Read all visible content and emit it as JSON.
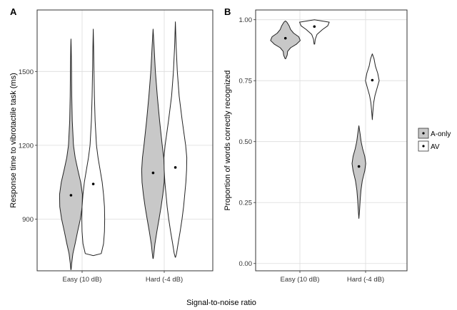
{
  "chart_data": [
    {
      "panel_label": "A",
      "type": "violin",
      "title": "",
      "xlabel": "",
      "ylabel": "Response time to vibrotactile task (ms)",
      "ylim": [
        690,
        1750
      ],
      "yticks": [
        900,
        1200,
        1500
      ],
      "categories": [
        "Easy (10 dB)",
        "Hard (-4 dB)"
      ],
      "grid": true,
      "series": [
        {
          "name": "A-only",
          "fill": "#c8c8c8",
          "groups": [
            {
              "category": "Easy (10 dB)",
              "min": 695,
              "max": 1632,
              "mean": 997,
              "profile": [
                [
                  695,
                  0.01
                ],
                [
                  720,
                  0.06
                ],
                [
                  760,
                  0.17
                ],
                [
                  800,
                  0.36
                ],
                [
                  850,
                  0.58
                ],
                [
                  900,
                  0.82
                ],
                [
                  950,
                  0.98
                ],
                [
                  1000,
                  1.0
                ],
                [
                  1050,
                  0.85
                ],
                [
                  1100,
                  0.6
                ],
                [
                  1150,
                  0.37
                ],
                [
                  1200,
                  0.22
                ],
                [
                  1300,
                  0.11
                ],
                [
                  1400,
                  0.07
                ],
                [
                  1500,
                  0.05
                ],
                [
                  1600,
                  0.02
                ],
                [
                  1632,
                  0.0
                ]
              ]
            },
            {
              "category": "Hard (-4 dB)",
              "min": 740,
              "max": 1672,
              "mean": 1088,
              "profile": [
                [
                  740,
                  0.01
                ],
                [
                  760,
                  0.07
                ],
                [
                  800,
                  0.16
                ],
                [
                  850,
                  0.33
                ],
                [
                  900,
                  0.52
                ],
                [
                  950,
                  0.7
                ],
                [
                  1000,
                  0.85
                ],
                [
                  1050,
                  0.97
                ],
                [
                  1100,
                  1.0
                ],
                [
                  1150,
                  0.93
                ],
                [
                  1200,
                  0.8
                ],
                [
                  1300,
                  0.57
                ],
                [
                  1400,
                  0.37
                ],
                [
                  1500,
                  0.2
                ],
                [
                  1600,
                  0.09
                ],
                [
                  1672,
                  0.0
                ]
              ]
            }
          ]
        },
        {
          "name": "AV",
          "fill": "#ffffff",
          "groups": [
            {
              "category": "Easy (10 dB)",
              "min": 752,
              "max": 1672,
              "mean": 1043,
              "profile": [
                [
                  752,
                  0.02
                ],
                [
                  760,
                  0.7
                ],
                [
                  800,
                  0.9
                ],
                [
                  850,
                  0.98
                ],
                [
                  900,
                  1.0
                ],
                [
                  950,
                  0.98
                ],
                [
                  1000,
                  0.9
                ],
                [
                  1050,
                  0.78
                ],
                [
                  1100,
                  0.6
                ],
                [
                  1150,
                  0.42
                ],
                [
                  1200,
                  0.28
                ],
                [
                  1300,
                  0.16
                ],
                [
                  1400,
                  0.1
                ],
                [
                  1500,
                  0.06
                ],
                [
                  1600,
                  0.03
                ],
                [
                  1672,
                  0.0
                ]
              ]
            },
            {
              "category": "Hard (-4 dB)",
              "min": 745,
              "max": 1702,
              "mean": 1110,
              "profile": [
                [
                  745,
                  0.01
                ],
                [
                  760,
                  0.1
                ],
                [
                  800,
                  0.24
                ],
                [
                  850,
                  0.42
                ],
                [
                  900,
                  0.58
                ],
                [
                  950,
                  0.72
                ],
                [
                  1000,
                  0.82
                ],
                [
                  1050,
                  0.92
                ],
                [
                  1100,
                  0.98
                ],
                [
                  1150,
                  1.0
                ],
                [
                  1200,
                  0.9
                ],
                [
                  1300,
                  0.6
                ],
                [
                  1400,
                  0.33
                ],
                [
                  1500,
                  0.17
                ],
                [
                  1600,
                  0.07
                ],
                [
                  1702,
                  0.0
                ]
              ]
            }
          ]
        }
      ]
    },
    {
      "panel_label": "B",
      "type": "violin",
      "title": "",
      "xlabel": "",
      "ylabel": "Proportion of words correctly recognized",
      "ylim": [
        -0.03,
        1.04
      ],
      "yticks": [
        0.0,
        0.25,
        0.5,
        0.75,
        1.0
      ],
      "yticklabels": [
        "0.00",
        "0.25",
        "0.50",
        "0.75",
        "1.00"
      ],
      "categories": [
        "Easy (10 dB)",
        "Hard (-4 dB)"
      ],
      "grid": true,
      "series": [
        {
          "name": "A-only",
          "fill": "#c8c8c8",
          "groups": [
            {
              "category": "Easy (10 dB)",
              "min": 0.84,
              "max": 0.995,
              "mean": 0.924,
              "profile": [
                [
                  0.84,
                  0.02
                ],
                [
                  0.855,
                  0.12
                ],
                [
                  0.87,
                  0.15
                ],
                [
                  0.885,
                  0.35
                ],
                [
                  0.9,
                  0.75
                ],
                [
                  0.915,
                  1.0
                ],
                [
                  0.93,
                  0.9
                ],
                [
                  0.945,
                  0.55
                ],
                [
                  0.96,
                  0.35
                ],
                [
                  0.975,
                  0.25
                ],
                [
                  0.99,
                  0.1
                ],
                [
                  0.995,
                  0.0
                ]
              ]
            },
            {
              "category": "Hard (-4 dB)",
              "min": 0.185,
              "max": 0.565,
              "mean": 0.398,
              "profile": [
                [
                  0.185,
                  0.0
                ],
                [
                  0.22,
                  0.1
                ],
                [
                  0.26,
                  0.18
                ],
                [
                  0.3,
                  0.3
                ],
                [
                  0.34,
                  0.5
                ],
                [
                  0.38,
                  0.85
                ],
                [
                  0.41,
                  1.0
                ],
                [
                  0.44,
                  0.85
                ],
                [
                  0.47,
                  0.55
                ],
                [
                  0.5,
                  0.32
                ],
                [
                  0.53,
                  0.18
                ],
                [
                  0.565,
                  0.0
                ]
              ]
            }
          ]
        },
        {
          "name": "AV",
          "fill": "#ffffff",
          "groups": [
            {
              "category": "Easy (10 dB)",
              "min": 0.9,
              "max": 1.0,
              "mean": 0.972,
              "profile": [
                [
                  0.9,
                  0.02
                ],
                [
                  0.92,
                  0.06
                ],
                [
                  0.94,
                  0.18
                ],
                [
                  0.96,
                  0.55
                ],
                [
                  0.975,
                  0.9
                ],
                [
                  0.99,
                  1.0
                ],
                [
                  1.0,
                  0.0
                ]
              ]
            },
            {
              "category": "Hard (-4 dB)",
              "min": 0.59,
              "max": 0.86,
              "mean": 0.752,
              "profile": [
                [
                  0.59,
                  0.0
                ],
                [
                  0.62,
                  0.08
                ],
                [
                  0.66,
                  0.2
                ],
                [
                  0.69,
                  0.4
                ],
                [
                  0.72,
                  0.7
                ],
                [
                  0.75,
                  1.0
                ],
                [
                  0.78,
                  0.8
                ],
                [
                  0.81,
                  0.45
                ],
                [
                  0.84,
                  0.25
                ],
                [
                  0.86,
                  0.0
                ]
              ]
            }
          ]
        }
      ]
    }
  ],
  "shared_xlabel": "Signal-to-noise ratio",
  "legend": {
    "placement": "right",
    "entries": [
      {
        "label": "A-only",
        "fill": "#c8c8c8"
      },
      {
        "label": "AV",
        "fill": "#ffffff"
      }
    ]
  },
  "colors": {
    "grid": "#dcdcdc",
    "axis": "#333333",
    "outline": "#222222"
  }
}
